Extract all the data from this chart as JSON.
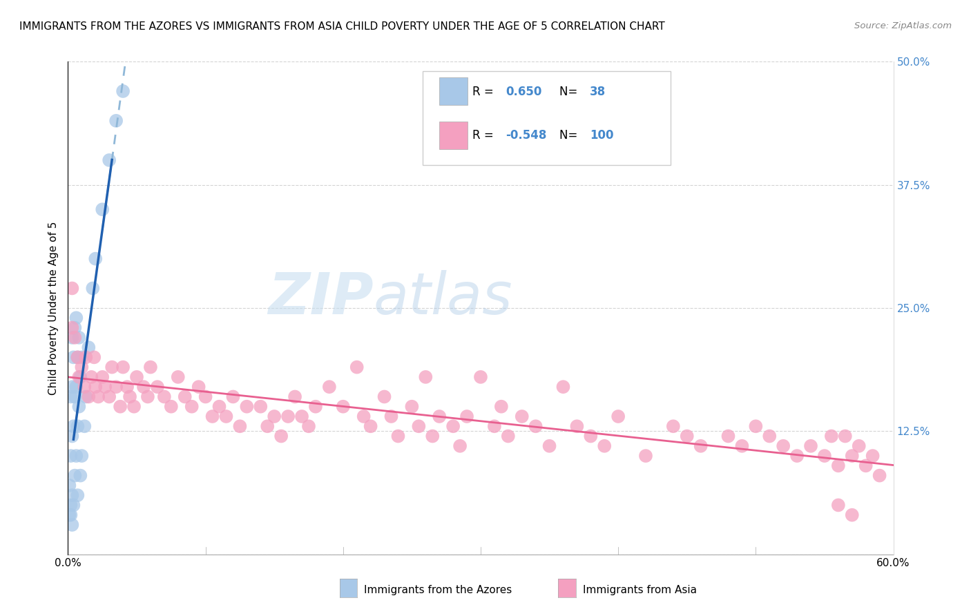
{
  "title": "IMMIGRANTS FROM THE AZORES VS IMMIGRANTS FROM ASIA CHILD POVERTY UNDER THE AGE OF 5 CORRELATION CHART",
  "source": "Source: ZipAtlas.com",
  "ylabel": "Child Poverty Under the Age of 5",
  "background_color": "#ffffff",
  "grid_color": "#c8c8c8",
  "watermark_zip": "ZIP",
  "watermark_atlas": "atlas",
  "xlim": [
    0.0,
    0.6
  ],
  "ylim": [
    0.0,
    0.5
  ],
  "xticks": [
    0.0,
    0.1,
    0.2,
    0.3,
    0.4,
    0.5,
    0.6
  ],
  "yticks": [
    0.0,
    0.125,
    0.25,
    0.375,
    0.5
  ],
  "right_ytick_labels": [
    "",
    "12.5%",
    "25.0%",
    "37.5%",
    "50.0%"
  ],
  "xtick_labels_show": [
    "0.0%",
    "60.0%"
  ],
  "azores_R": 0.65,
  "azores_N": 38,
  "asia_R": -0.548,
  "asia_N": 100,
  "azores_color": "#a8c8e8",
  "asia_color": "#f4a0c0",
  "azores_line_color": "#2060b0",
  "azores_dash_color": "#90b8d8",
  "asia_line_color": "#e86090",
  "legend_color": "#4488cc",
  "azores_x": [
    0.001,
    0.001,
    0.002,
    0.002,
    0.002,
    0.003,
    0.003,
    0.003,
    0.003,
    0.004,
    0.004,
    0.004,
    0.005,
    0.005,
    0.005,
    0.006,
    0.006,
    0.006,
    0.007,
    0.007,
    0.007,
    0.008,
    0.008,
    0.009,
    0.009,
    0.01,
    0.01,
    0.012,
    0.013,
    0.015,
    0.018,
    0.02,
    0.025,
    0.03,
    0.035,
    0.04,
    0.002,
    0.003
  ],
  "azores_y": [
    0.04,
    0.07,
    0.05,
    0.1,
    0.16,
    0.06,
    0.12,
    0.17,
    0.22,
    0.05,
    0.13,
    0.2,
    0.08,
    0.16,
    0.23,
    0.1,
    0.17,
    0.24,
    0.06,
    0.13,
    0.2,
    0.15,
    0.22,
    0.08,
    0.18,
    0.1,
    0.2,
    0.13,
    0.16,
    0.21,
    0.27,
    0.3,
    0.35,
    0.4,
    0.44,
    0.47,
    0.04,
    0.03
  ],
  "asia_x": [
    0.003,
    0.005,
    0.007,
    0.008,
    0.01,
    0.012,
    0.013,
    0.015,
    0.017,
    0.019,
    0.02,
    0.022,
    0.025,
    0.027,
    0.03,
    0.032,
    0.035,
    0.038,
    0.04,
    0.043,
    0.045,
    0.048,
    0.05,
    0.055,
    0.058,
    0.06,
    0.065,
    0.07,
    0.075,
    0.08,
    0.085,
    0.09,
    0.095,
    0.1,
    0.105,
    0.11,
    0.115,
    0.12,
    0.125,
    0.13,
    0.14,
    0.145,
    0.15,
    0.155,
    0.16,
    0.165,
    0.17,
    0.175,
    0.18,
    0.19,
    0.2,
    0.21,
    0.215,
    0.22,
    0.23,
    0.235,
    0.24,
    0.25,
    0.255,
    0.26,
    0.265,
    0.27,
    0.28,
    0.285,
    0.29,
    0.3,
    0.31,
    0.315,
    0.32,
    0.33,
    0.34,
    0.35,
    0.36,
    0.37,
    0.38,
    0.39,
    0.4,
    0.42,
    0.44,
    0.45,
    0.46,
    0.48,
    0.49,
    0.5,
    0.51,
    0.52,
    0.53,
    0.54,
    0.55,
    0.555,
    0.56,
    0.565,
    0.57,
    0.575,
    0.58,
    0.585,
    0.59,
    0.56,
    0.57,
    0.003
  ],
  "asia_y": [
    0.27,
    0.22,
    0.2,
    0.18,
    0.19,
    0.17,
    0.2,
    0.16,
    0.18,
    0.2,
    0.17,
    0.16,
    0.18,
    0.17,
    0.16,
    0.19,
    0.17,
    0.15,
    0.19,
    0.17,
    0.16,
    0.15,
    0.18,
    0.17,
    0.16,
    0.19,
    0.17,
    0.16,
    0.15,
    0.18,
    0.16,
    0.15,
    0.17,
    0.16,
    0.14,
    0.15,
    0.14,
    0.16,
    0.13,
    0.15,
    0.15,
    0.13,
    0.14,
    0.12,
    0.14,
    0.16,
    0.14,
    0.13,
    0.15,
    0.17,
    0.15,
    0.19,
    0.14,
    0.13,
    0.16,
    0.14,
    0.12,
    0.15,
    0.13,
    0.18,
    0.12,
    0.14,
    0.13,
    0.11,
    0.14,
    0.18,
    0.13,
    0.15,
    0.12,
    0.14,
    0.13,
    0.11,
    0.17,
    0.13,
    0.12,
    0.11,
    0.14,
    0.1,
    0.13,
    0.12,
    0.11,
    0.12,
    0.11,
    0.13,
    0.12,
    0.11,
    0.1,
    0.11,
    0.1,
    0.12,
    0.09,
    0.12,
    0.1,
    0.11,
    0.09,
    0.1,
    0.08,
    0.05,
    0.04,
    0.23
  ]
}
